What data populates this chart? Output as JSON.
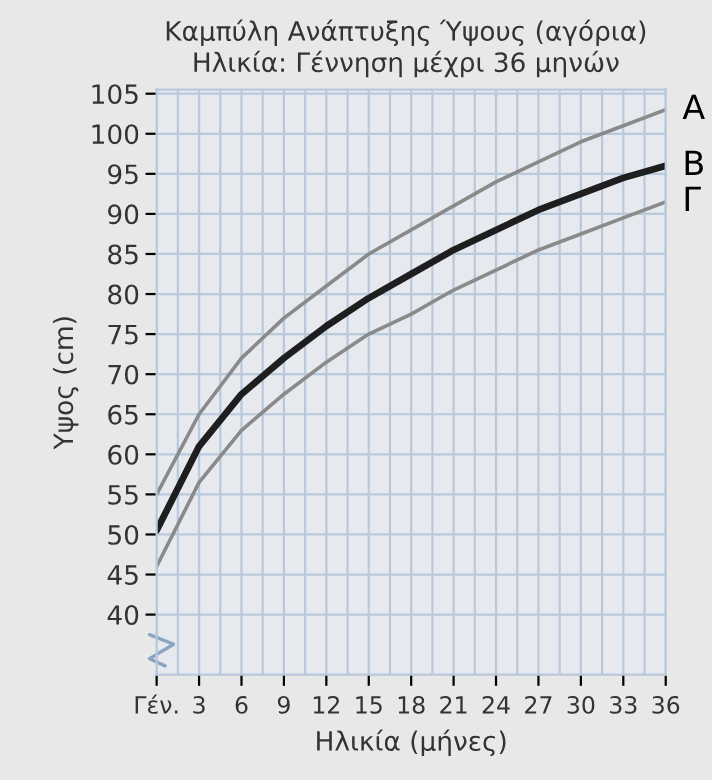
{
  "chart_data": {
    "type": "line",
    "title": "Καμπύλη Ανάπτυξης Ύψους (αγόρια)",
    "subtitle": "Ηλικία: Γέννηση μέχρι 36 μηνών",
    "xlabel": "Ηλικία (μήνες)",
    "ylabel": "Υψος (cm)",
    "x": [
      0,
      3,
      6,
      9,
      12,
      15,
      18,
      21,
      24,
      27,
      30,
      33,
      36
    ],
    "series": [
      {
        "name": "A",
        "color": "#8a8a8a",
        "values": [
          55,
          65,
          72,
          77,
          81,
          85,
          88,
          91,
          94,
          96.5,
          99,
          101,
          103
        ]
      },
      {
        "name": "B",
        "color": "#1e1e1e",
        "values": [
          50.5,
          61,
          67.5,
          72,
          76,
          79.5,
          82.5,
          85.5,
          88,
          90.5,
          92.5,
          94.5,
          96
        ]
      },
      {
        "name": "Γ",
        "color": "#8a8a8a",
        "values": [
          46,
          56.5,
          63,
          67.5,
          71.5,
          75,
          77.5,
          80.5,
          83,
          85.5,
          87.5,
          89.5,
          91.5
        ]
      }
    ],
    "xlim": [
      0,
      36
    ],
    "ylim": [
      32.5,
      105.5
    ],
    "xticks": [
      {
        "value": 0,
        "label": "Γέν."
      },
      3,
      6,
      9,
      12,
      15,
      18,
      21,
      24,
      27,
      30,
      33,
      36
    ],
    "yticks": [
      40,
      45,
      50,
      55,
      60,
      65,
      70,
      75,
      80,
      85,
      90,
      95,
      100,
      105
    ],
    "grid": true,
    "marker": "none",
    "line_style": "solid"
  }
}
